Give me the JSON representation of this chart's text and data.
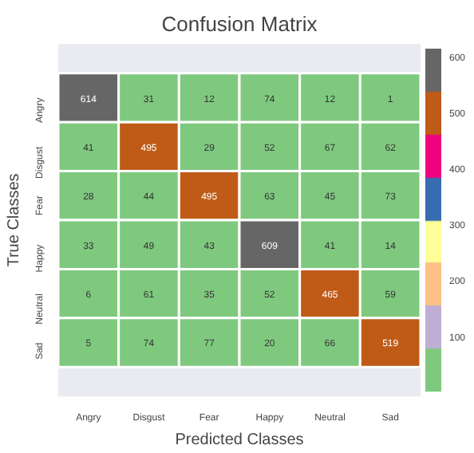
{
  "chart_data": {
    "type": "heatmap",
    "title": "Confusion Matrix",
    "xlabel": "Predicted Classes",
    "ylabel": "True Classes",
    "categories": [
      "Angry",
      "Disgust",
      "Fear",
      "Happy",
      "Neutral",
      "Sad"
    ],
    "y_categories": [
      "Angry",
      "Disgust",
      "Fear",
      "Happy",
      "Neutral",
      "Sad"
    ],
    "cells": [
      [
        614,
        31,
        12,
        74,
        12,
        1
      ],
      [
        41,
        495,
        29,
        52,
        67,
        62
      ],
      [
        28,
        44,
        495,
        63,
        45,
        73
      ],
      [
        33,
        49,
        43,
        609,
        41,
        14
      ],
      [
        6,
        61,
        35,
        52,
        465,
        59
      ],
      [
        5,
        74,
        77,
        20,
        66,
        519
      ]
    ],
    "clim": [
      1,
      614
    ],
    "cticks": [
      100,
      200,
      300,
      400,
      500,
      600
    ],
    "data_labels": true,
    "grid": false
  }
}
